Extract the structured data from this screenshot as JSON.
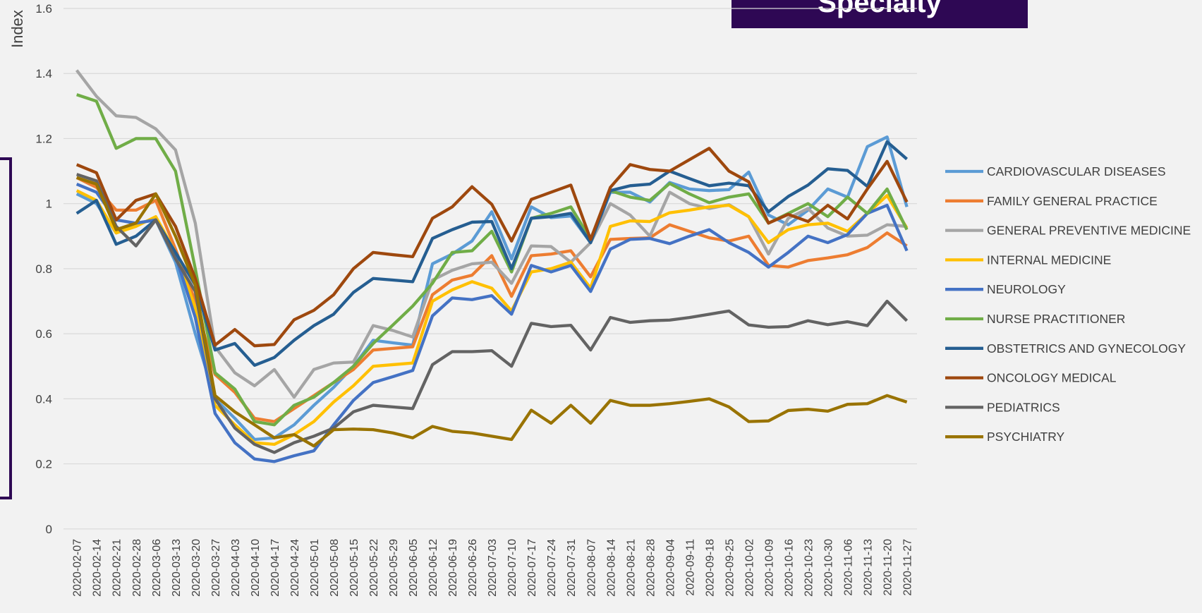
{
  "chart_data": {
    "type": "line",
    "title": "Specialty",
    "y_label": "Index",
    "categories": [
      "2020-02-07",
      "2020-02-14",
      "2020-02-21",
      "2020-02-28",
      "2020-03-06",
      "2020-03-13",
      "2020-03-20",
      "2020-03-27",
      "2020-04-03",
      "2020-04-10",
      "2020-04-17",
      "2020-04-24",
      "2020-05-01",
      "2020-05-08",
      "2020-05-15",
      "2020-05-22",
      "2020-05-29",
      "2020-06-05",
      "2020-06-12",
      "2020-06-19",
      "2020-06-26",
      "2020-07-03",
      "2020-07-10",
      "2020-07-17",
      "2020-07-24",
      "2020-07-31",
      "2020-08-07",
      "2020-08-14",
      "2020-08-21",
      "2020-08-28",
      "2020-09-04",
      "2020-09-11",
      "2020-09-18",
      "2020-09-25",
      "2020-10-02",
      "2020-10-09",
      "2020-10-16",
      "2020-10-23",
      "2020-10-30",
      "2020-11-06",
      "2020-11-13",
      "2020-11-20",
      "2020-11-27"
    ],
    "ylim": [
      0,
      1.6
    ],
    "yticks": [
      0,
      0.2,
      0.4,
      0.6,
      0.8,
      1,
      1.2,
      1.4,
      1.6
    ],
    "grid": true,
    "legend": "right",
    "series": [
      {
        "name": "CARDIOVASCULAR DISEASES",
        "color": "#5b9bd5",
        "values": [
          1.03,
          1.0,
          0.91,
          0.94,
          0.95,
          0.82,
          0.6,
          0.4,
          0.34,
          0.275,
          0.28,
          0.32,
          0.38,
          0.435,
          0.5,
          0.58,
          0.572,
          0.565,
          0.815,
          0.845,
          0.885,
          0.975,
          0.83,
          0.99,
          0.957,
          0.962,
          0.88,
          1.035,
          1.035,
          1.005,
          1.065,
          1.045,
          1.04,
          1.043,
          1.097,
          0.965,
          0.935,
          0.98,
          1.045,
          1.02,
          1.175,
          1.205,
          0.99
        ]
      },
      {
        "name": "FAMILY GENERAL PRACTICE",
        "color": "#ed7d31",
        "values": [
          1.08,
          1.05,
          0.98,
          0.98,
          1.01,
          0.86,
          0.7,
          0.475,
          0.42,
          0.34,
          0.33,
          0.37,
          0.41,
          0.45,
          0.49,
          0.55,
          0.555,
          0.56,
          0.72,
          0.765,
          0.78,
          0.84,
          0.715,
          0.84,
          0.845,
          0.855,
          0.775,
          0.89,
          0.893,
          0.895,
          0.935,
          0.915,
          0.895,
          0.885,
          0.9,
          0.81,
          0.805,
          0.825,
          0.833,
          0.843,
          0.865,
          0.91,
          0.87
        ]
      },
      {
        "name": "GENERAL PREVENTIVE MEDICINE",
        "color": "#a5a5a5",
        "values": [
          1.41,
          1.33,
          1.27,
          1.265,
          1.23,
          1.165,
          0.94,
          0.56,
          0.48,
          0.44,
          0.49,
          0.405,
          0.49,
          0.51,
          0.513,
          0.625,
          0.61,
          0.59,
          0.765,
          0.795,
          0.815,
          0.82,
          0.755,
          0.87,
          0.868,
          0.82,
          0.88,
          1.0,
          0.965,
          0.9,
          1.035,
          1.0,
          0.985,
          0.997,
          0.96,
          0.845,
          0.955,
          0.985,
          0.925,
          0.9,
          0.903,
          0.935,
          0.93
        ]
      },
      {
        "name": "INTERNAL MEDICINE",
        "color": "#ffc000",
        "values": [
          1.04,
          1.01,
          0.91,
          0.93,
          0.96,
          0.85,
          0.68,
          0.38,
          0.32,
          0.265,
          0.26,
          0.29,
          0.33,
          0.39,
          0.44,
          0.5,
          0.505,
          0.51,
          0.7,
          0.735,
          0.76,
          0.74,
          0.67,
          0.79,
          0.8,
          0.82,
          0.74,
          0.93,
          0.947,
          0.945,
          0.972,
          0.98,
          0.99,
          0.995,
          0.96,
          0.88,
          0.92,
          0.935,
          0.94,
          0.915,
          0.97,
          1.025,
          0.925
        ]
      },
      {
        "name": "NEUROLOGY",
        "color": "#4472c4",
        "values": [
          1.06,
          1.035,
          0.95,
          0.94,
          0.95,
          0.84,
          0.65,
          0.355,
          0.265,
          0.215,
          0.207,
          0.225,
          0.24,
          0.32,
          0.395,
          0.45,
          0.468,
          0.487,
          0.655,
          0.71,
          0.705,
          0.717,
          0.66,
          0.81,
          0.79,
          0.81,
          0.73,
          0.86,
          0.89,
          0.893,
          0.877,
          0.9,
          0.92,
          0.88,
          0.85,
          0.805,
          0.85,
          0.9,
          0.88,
          0.905,
          0.97,
          0.995,
          0.855
        ]
      },
      {
        "name": "NURSE PRACTITIONER",
        "color": "#70ad47",
        "values": [
          1.335,
          1.315,
          1.17,
          1.2,
          1.2,
          1.1,
          0.8,
          0.48,
          0.43,
          0.33,
          0.32,
          0.38,
          0.405,
          0.45,
          0.5,
          0.57,
          0.627,
          0.685,
          0.755,
          0.85,
          0.855,
          0.915,
          0.79,
          0.955,
          0.97,
          0.99,
          0.89,
          1.04,
          1.02,
          1.01,
          1.062,
          1.03,
          1.003,
          1.02,
          1.03,
          0.94,
          0.97,
          1.0,
          0.96,
          1.02,
          0.97,
          1.045,
          0.92
        ]
      },
      {
        "name": "OBSTETRICS AND GYNECOLOGY",
        "color": "#255e91",
        "values": [
          0.97,
          1.01,
          0.875,
          0.9,
          0.95,
          0.85,
          0.75,
          0.55,
          0.57,
          0.503,
          0.527,
          0.58,
          0.625,
          0.66,
          0.727,
          0.77,
          0.765,
          0.76,
          0.893,
          0.92,
          0.943,
          0.945,
          0.8,
          0.955,
          0.96,
          0.97,
          0.88,
          1.04,
          1.055,
          1.06,
          1.1,
          1.077,
          1.055,
          1.063,
          1.055,
          0.975,
          1.022,
          1.057,
          1.107,
          1.102,
          1.053,
          1.19,
          1.137
        ]
      },
      {
        "name": "ONCOLOGY MEDICAL",
        "color": "#9e480e",
        "values": [
          1.12,
          1.095,
          0.95,
          1.01,
          1.03,
          0.93,
          0.77,
          0.565,
          0.613,
          0.563,
          0.567,
          0.643,
          0.672,
          0.72,
          0.8,
          0.85,
          0.843,
          0.837,
          0.955,
          0.99,
          1.052,
          0.998,
          0.885,
          1.013,
          1.035,
          1.057,
          0.89,
          1.05,
          1.12,
          1.105,
          1.1,
          1.135,
          1.17,
          1.1,
          1.067,
          0.94,
          0.967,
          0.945,
          0.995,
          0.953,
          1.045,
          1.13,
          1.005
        ]
      },
      {
        "name": "PEDIATRICS",
        "color": "#636363",
        "values": [
          1.09,
          1.07,
          0.93,
          0.87,
          0.95,
          0.83,
          0.73,
          0.4,
          0.31,
          0.26,
          0.235,
          0.265,
          0.285,
          0.31,
          0.36,
          0.38,
          0.375,
          0.37,
          0.505,
          0.545,
          0.545,
          0.548,
          0.5,
          0.632,
          0.622,
          0.626,
          0.55,
          0.65,
          0.635,
          0.64,
          0.642,
          0.65,
          0.66,
          0.67,
          0.627,
          0.62,
          0.622,
          0.64,
          0.628,
          0.637,
          0.625,
          0.7,
          0.64
        ]
      },
      {
        "name": "PSYCHIATRY",
        "color": "#997300",
        "values": [
          1.08,
          1.06,
          0.92,
          0.94,
          1.03,
          0.9,
          0.75,
          0.41,
          0.36,
          0.32,
          0.28,
          0.29,
          0.255,
          0.305,
          0.307,
          0.305,
          0.295,
          0.28,
          0.315,
          0.3,
          0.295,
          0.285,
          0.275,
          0.365,
          0.325,
          0.38,
          0.325,
          0.395,
          0.38,
          0.38,
          0.385,
          0.392,
          0.4,
          0.375,
          0.33,
          0.332,
          0.364,
          0.368,
          0.362,
          0.383,
          0.385,
          0.41,
          0.39
        ]
      }
    ]
  }
}
